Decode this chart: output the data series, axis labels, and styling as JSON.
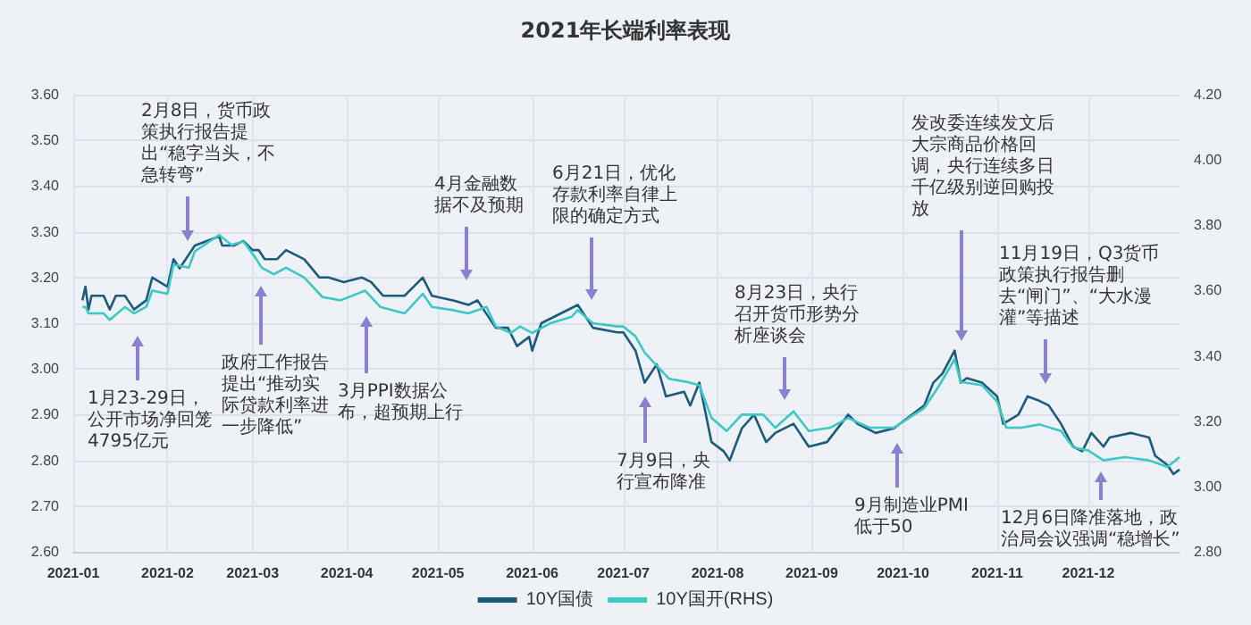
{
  "chart_data": {
    "type": "line",
    "title": "2021年长端利率表现",
    "xlim": [
      "2021-01-01",
      "2021-12-31"
    ],
    "xticks": [
      "2021-01",
      "2021-02",
      "2021-03",
      "2021-04",
      "2021-05",
      "2021-06",
      "2021-07",
      "2021-08",
      "2021-09",
      "2021-10",
      "2021-11",
      "2021-12"
    ],
    "ylim": [
      2.6,
      3.6
    ],
    "yticks": [
      {
        "value": 2.6,
        "label": "2.60"
      },
      {
        "value": 2.7,
        "label": "2.70"
      },
      {
        "value": 2.8,
        "label": "2.80"
      },
      {
        "value": 2.9,
        "label": "2.90"
      },
      {
        "value": 3.0,
        "label": "3.00"
      },
      {
        "value": 3.1,
        "label": "3.10"
      },
      {
        "value": 3.2,
        "label": "3.20"
      },
      {
        "value": 3.3,
        "label": "3.30"
      },
      {
        "value": 3.4,
        "label": "3.40"
      },
      {
        "value": 3.5,
        "label": "3.50"
      },
      {
        "value": 3.6,
        "label": "3.60"
      }
    ],
    "y2lim": [
      2.8,
      4.2
    ],
    "y2ticks": [
      {
        "value": 2.8,
        "label": "2.80"
      },
      {
        "value": 3.0,
        "label": "3.00"
      },
      {
        "value": 3.2,
        "label": "3.20"
      },
      {
        "value": 3.4,
        "label": "3.40"
      },
      {
        "value": 3.6,
        "label": "3.60"
      },
      {
        "value": 3.8,
        "label": "3.80"
      },
      {
        "value": 4.0,
        "label": "4.00"
      },
      {
        "value": 4.2,
        "label": "4.20"
      }
    ],
    "grid": true,
    "legend": "bottom",
    "marker": "none",
    "line_style": "solid",
    "series": [
      {
        "name": "10Y国债",
        "color": "#1d5b7c",
        "x": [
          "2021-01-04",
          "2021-01-05",
          "2021-01-06",
          "2021-01-07",
          "2021-01-11",
          "2021-01-13",
          "2021-01-15",
          "2021-01-18",
          "2021-01-21",
          "2021-01-25",
          "2021-01-27",
          "2021-02-01",
          "2021-02-03",
          "2021-02-05",
          "2021-02-08",
          "2021-02-10",
          "2021-02-18",
          "2021-02-19",
          "2021-02-23",
          "2021-02-26",
          "2021-03-01",
          "2021-03-03",
          "2021-03-05",
          "2021-03-09",
          "2021-03-12",
          "2021-03-18",
          "2021-03-23",
          "2021-03-26",
          "2021-03-31",
          "2021-04-06",
          "2021-04-09",
          "2021-04-13",
          "2021-04-20",
          "2021-04-26",
          "2021-04-29",
          "2021-05-06",
          "2021-05-11",
          "2021-05-14",
          "2021-05-20",
          "2021-05-24",
          "2021-05-27",
          "2021-05-31",
          "2021-06-01",
          "2021-06-04",
          "2021-06-10",
          "2021-06-16",
          "2021-06-21",
          "2021-06-29",
          "2021-07-01",
          "2021-07-05",
          "2021-07-08",
          "2021-07-12",
          "2021-07-15",
          "2021-07-21",
          "2021-07-23",
          "2021-07-26",
          "2021-07-30",
          "2021-08-03",
          "2021-08-05",
          "2021-08-09",
          "2021-08-13",
          "2021-08-17",
          "2021-08-20",
          "2021-08-26",
          "2021-08-31",
          "2021-09-06",
          "2021-09-13",
          "2021-09-16",
          "2021-09-22",
          "2021-09-28",
          "2021-10-08",
          "2021-10-11",
          "2021-10-14",
          "2021-10-18",
          "2021-10-20",
          "2021-10-22",
          "2021-10-27",
          "2021-11-01",
          "2021-11-03",
          "2021-11-08",
          "2021-11-11",
          "2021-11-15",
          "2021-11-18",
          "2021-11-22",
          "2021-11-26",
          "2021-11-29",
          "2021-12-02",
          "2021-12-06",
          "2021-12-08",
          "2021-12-15",
          "2021-12-21",
          "2021-12-23",
          "2021-12-27",
          "2021-12-29",
          "2021-12-31"
        ],
        "values": [
          3.15,
          3.18,
          3.13,
          3.16,
          3.16,
          3.13,
          3.16,
          3.16,
          3.13,
          3.15,
          3.2,
          3.18,
          3.24,
          3.22,
          3.25,
          3.27,
          3.29,
          3.27,
          3.27,
          3.28,
          3.26,
          3.26,
          3.24,
          3.24,
          3.26,
          3.24,
          3.2,
          3.2,
          3.19,
          3.2,
          3.19,
          3.16,
          3.16,
          3.2,
          3.16,
          3.15,
          3.14,
          3.15,
          3.09,
          3.09,
          3.05,
          3.07,
          3.04,
          3.1,
          3.12,
          3.14,
          3.09,
          3.08,
          3.08,
          3.04,
          2.97,
          3.01,
          2.94,
          2.95,
          2.92,
          2.97,
          2.84,
          2.82,
          2.8,
          2.87,
          2.9,
          2.84,
          2.86,
          2.88,
          2.83,
          2.84,
          2.9,
          2.88,
          2.86,
          2.87,
          2.92,
          2.97,
          2.99,
          3.04,
          2.97,
          2.98,
          2.97,
          2.94,
          2.88,
          2.9,
          2.94,
          2.93,
          2.92,
          2.88,
          2.83,
          2.82,
          2.86,
          2.83,
          2.85,
          2.86,
          2.85,
          2.81,
          2.79,
          2.77,
          2.78
        ]
      },
      {
        "name": "10Y国开(RHS)",
        "color": "#3cc8c4",
        "axis": "y2",
        "x": [
          "2021-01-04",
          "2021-01-05",
          "2021-01-06",
          "2021-01-11",
          "2021-01-13",
          "2021-01-18",
          "2021-01-21",
          "2021-01-25",
          "2021-01-27",
          "2021-02-01",
          "2021-02-03",
          "2021-02-08",
          "2021-02-10",
          "2021-02-18",
          "2021-02-22",
          "2021-02-26",
          "2021-03-02",
          "2021-03-04",
          "2021-03-08",
          "2021-03-12",
          "2021-03-18",
          "2021-03-24",
          "2021-03-30",
          "2021-04-07",
          "2021-04-12",
          "2021-04-20",
          "2021-04-26",
          "2021-04-29",
          "2021-05-06",
          "2021-05-11",
          "2021-05-17",
          "2021-05-20",
          "2021-05-25",
          "2021-05-28",
          "2021-06-01",
          "2021-06-07",
          "2021-06-14",
          "2021-06-16",
          "2021-06-21",
          "2021-06-29",
          "2021-07-01",
          "2021-07-05",
          "2021-07-08",
          "2021-07-13",
          "2021-07-16",
          "2021-07-22",
          "2021-07-26",
          "2021-07-30",
          "2021-08-04",
          "2021-08-09",
          "2021-08-16",
          "2021-08-20",
          "2021-08-26",
          "2021-08-31",
          "2021-09-07",
          "2021-09-13",
          "2021-09-20",
          "2021-09-28",
          "2021-10-08",
          "2021-10-13",
          "2021-10-18",
          "2021-10-20",
          "2021-10-27",
          "2021-11-01",
          "2021-11-04",
          "2021-11-09",
          "2021-11-15",
          "2021-11-22",
          "2021-11-26",
          "2021-12-01",
          "2021-12-06",
          "2021-12-13",
          "2021-12-21",
          "2021-12-27",
          "2021-12-31"
        ],
        "values": [
          3.55,
          3.55,
          3.53,
          3.53,
          3.51,
          3.55,
          3.53,
          3.55,
          3.6,
          3.59,
          3.68,
          3.67,
          3.72,
          3.77,
          3.74,
          3.75,
          3.7,
          3.67,
          3.65,
          3.67,
          3.64,
          3.58,
          3.57,
          3.6,
          3.55,
          3.53,
          3.59,
          3.55,
          3.54,
          3.53,
          3.55,
          3.49,
          3.47,
          3.49,
          3.47,
          3.5,
          3.52,
          3.54,
          3.5,
          3.49,
          3.49,
          3.46,
          3.41,
          3.36,
          3.33,
          3.32,
          3.31,
          3.21,
          3.17,
          3.22,
          3.22,
          3.18,
          3.23,
          3.17,
          3.18,
          3.21,
          3.18,
          3.18,
          3.24,
          3.31,
          3.39,
          3.32,
          3.31,
          3.26,
          3.18,
          3.18,
          3.19,
          3.17,
          3.12,
          3.11,
          3.08,
          3.09,
          3.08,
          3.06,
          3.09
        ]
      }
    ],
    "annotations": [
      "1月23-29日，公开市场净回笼4795亿元",
      "2月8日，货币政策执行报告提出“稳字当头，不急转弯”",
      "政府工作报告提出“推动实际贷款利率进一步降低”",
      "3月PPI数据公布，超预期上行",
      "4月金融数据不及预期",
      "6月21日，优化存款利率自律上限的确定方式",
      "7月9日，央行宣布降准",
      "8月23日，央行召开货币形势分析座谈会",
      "9月制造业PMI低于50",
      "发改委连续发文后大宗商品价格回调，央行连续多日千亿级别逆回购投放",
      "11月19日，Q3货币政策执行报告删去“闸门”、“大水漫灌”等描述",
      "12月6日降准落地，政治局会议强调“稳增长”"
    ]
  }
}
